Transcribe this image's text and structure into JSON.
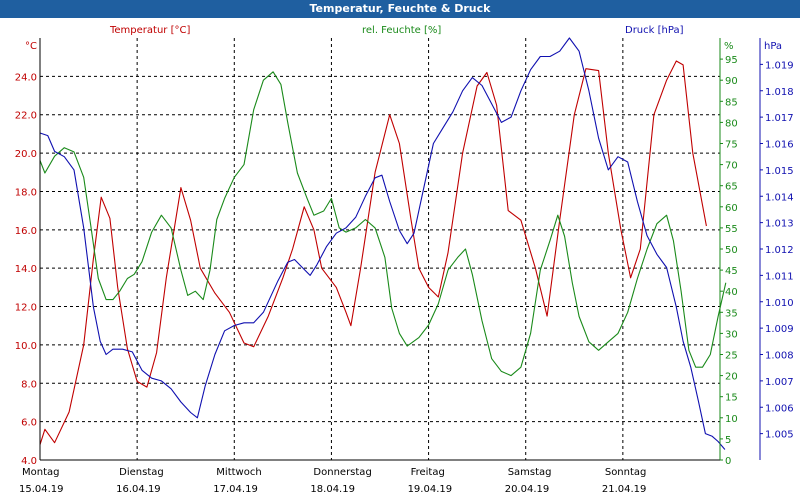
{
  "window": {
    "title": "Temperatur, Feuchte & Druck"
  },
  "chart_data": {
    "type": "line",
    "title": "Temperatur, Feuchte & Druck",
    "grid": true,
    "colors": {
      "temperature": "#c00000",
      "humidity": "#1a8a1a",
      "pressure": "#1010b0",
      "grid": "#000000",
      "titlebar": "#1f5fa0"
    },
    "x_axis": {
      "unit": "days",
      "range": [
        0,
        7.0
      ],
      "ticks": [
        {
          "x": 0,
          "day": "Montag",
          "date": "15.04.19"
        },
        {
          "x": 1,
          "day": "Dienstag",
          "date": "16.04.19"
        },
        {
          "x": 2,
          "day": "Mittwoch",
          "date": "17.04.19"
        },
        {
          "x": 3,
          "day": "Donnerstag",
          "date": "18.04.19"
        },
        {
          "x": 4,
          "day": "Freitag",
          "date": "19.04.19"
        },
        {
          "x": 5,
          "day": "Samstag",
          "date": "20.04.19"
        },
        {
          "x": 6,
          "day": "Sonntag",
          "date": "21.04.19"
        }
      ]
    },
    "axes": {
      "temperature": {
        "label": "Temperatur [°C]",
        "unit": "°C",
        "ylim": [
          4.0,
          26.0
        ],
        "ticks": [
          "4.0",
          "6.0",
          "8.0",
          "10.0",
          "12.0",
          "14.0",
          "16.0",
          "18.0",
          "20.0",
          "22.0",
          "24.0"
        ]
      },
      "humidity": {
        "label": "rel. Feuchte [%]",
        "unit": "%",
        "ylim": [
          0,
          100
        ],
        "ticks": [
          "0",
          "5",
          "10",
          "15",
          "20",
          "25",
          "30",
          "35",
          "40",
          "45",
          "50",
          "55",
          "60",
          "65",
          "70",
          "75",
          "80",
          "85",
          "90",
          "95"
        ]
      },
      "pressure": {
        "label": "Druck [hPa]",
        "unit": "hPa",
        "ylim": [
          1.004,
          1.02
        ],
        "ticks": [
          "1.005",
          "1.006",
          "1.007",
          "1.008",
          "1.009",
          "1.010",
          "1.011",
          "1.012",
          "1.013",
          "1.014",
          "1.015",
          "1.016",
          "1.017",
          "1.018",
          "1.019"
        ]
      }
    },
    "series": [
      {
        "name": "Temperatur [°C]",
        "axis": "temperature",
        "points": [
          [
            0,
            4.8
          ],
          [
            0.05,
            5.6
          ],
          [
            0.15,
            4.9
          ],
          [
            0.3,
            6.5
          ],
          [
            0.45,
            10.0
          ],
          [
            0.55,
            14.5
          ],
          [
            0.63,
            17.7
          ],
          [
            0.72,
            16.6
          ],
          [
            0.8,
            13.0
          ],
          [
            0.9,
            9.8
          ],
          [
            1.0,
            8.1
          ],
          [
            1.1,
            7.8
          ],
          [
            1.2,
            9.6
          ],
          [
            1.3,
            13.5
          ],
          [
            1.45,
            18.2
          ],
          [
            1.55,
            16.5
          ],
          [
            1.65,
            14.0
          ],
          [
            1.8,
            12.7
          ],
          [
            1.95,
            11.7
          ],
          [
            2.1,
            10.1
          ],
          [
            2.2,
            9.9
          ],
          [
            2.35,
            11.5
          ],
          [
            2.5,
            13.5
          ],
          [
            2.6,
            15.0
          ],
          [
            2.72,
            17.2
          ],
          [
            2.82,
            16.0
          ],
          [
            2.9,
            14.0
          ],
          [
            3.05,
            13.0
          ],
          [
            3.15,
            11.7
          ],
          [
            3.2,
            11.0
          ],
          [
            3.3,
            14.0
          ],
          [
            3.45,
            19.0
          ],
          [
            3.6,
            22.0
          ],
          [
            3.7,
            20.5
          ],
          [
            3.82,
            16.5
          ],
          [
            3.9,
            14.0
          ],
          [
            4.0,
            13.0
          ],
          [
            4.1,
            12.5
          ],
          [
            4.2,
            14.8
          ],
          [
            4.35,
            20.0
          ],
          [
            4.5,
            23.5
          ],
          [
            4.6,
            24.2
          ],
          [
            4.7,
            22.5
          ],
          [
            4.82,
            17.0
          ],
          [
            4.95,
            16.5
          ],
          [
            5.1,
            14.0
          ],
          [
            5.22,
            11.5
          ],
          [
            5.35,
            16.5
          ],
          [
            5.5,
            22.0
          ],
          [
            5.62,
            24.4
          ],
          [
            5.75,
            24.3
          ],
          [
            5.85,
            20.0
          ],
          [
            5.98,
            16.0
          ],
          [
            6.08,
            13.5
          ],
          [
            6.18,
            15.0
          ],
          [
            6.32,
            22.0
          ],
          [
            6.45,
            23.8
          ],
          [
            6.55,
            24.8
          ],
          [
            6.62,
            24.6
          ],
          [
            6.72,
            20.0
          ],
          [
            6.86,
            16.2
          ]
        ]
      },
      {
        "name": "rel. Feuchte [%]",
        "axis": "humidity",
        "points": [
          [
            0,
            71
          ],
          [
            0.05,
            68
          ],
          [
            0.15,
            72
          ],
          [
            0.25,
            74
          ],
          [
            0.35,
            73
          ],
          [
            0.45,
            67
          ],
          [
            0.52,
            56
          ],
          [
            0.6,
            43
          ],
          [
            0.68,
            38
          ],
          [
            0.75,
            38
          ],
          [
            0.82,
            40
          ],
          [
            0.9,
            43
          ],
          [
            0.97,
            44
          ],
          [
            1.05,
            47
          ],
          [
            1.15,
            54
          ],
          [
            1.25,
            58
          ],
          [
            1.35,
            55
          ],
          [
            1.45,
            45
          ],
          [
            1.52,
            39
          ],
          [
            1.6,
            40
          ],
          [
            1.68,
            38
          ],
          [
            1.75,
            45
          ],
          [
            1.82,
            57
          ],
          [
            1.9,
            62
          ],
          [
            2.0,
            67
          ],
          [
            2.1,
            70
          ],
          [
            2.2,
            83
          ],
          [
            2.3,
            90
          ],
          [
            2.4,
            92
          ],
          [
            2.48,
            89
          ],
          [
            2.55,
            80
          ],
          [
            2.65,
            68
          ],
          [
            2.75,
            62
          ],
          [
            2.82,
            58
          ],
          [
            2.92,
            59
          ],
          [
            3.0,
            62
          ],
          [
            3.08,
            55
          ],
          [
            3.15,
            54
          ],
          [
            3.25,
            55
          ],
          [
            3.35,
            57
          ],
          [
            3.45,
            55
          ],
          [
            3.55,
            48
          ],
          [
            3.62,
            36
          ],
          [
            3.7,
            30
          ],
          [
            3.78,
            27
          ],
          [
            3.9,
            29
          ],
          [
            4.0,
            32
          ],
          [
            4.1,
            37
          ],
          [
            4.2,
            45
          ],
          [
            4.3,
            48
          ],
          [
            4.38,
            50
          ],
          [
            4.45,
            44
          ],
          [
            4.55,
            33
          ],
          [
            4.65,
            24
          ],
          [
            4.75,
            21
          ],
          [
            4.85,
            20
          ],
          [
            4.95,
            22
          ],
          [
            5.05,
            30
          ],
          [
            5.15,
            45
          ],
          [
            5.25,
            52
          ],
          [
            5.33,
            58
          ],
          [
            5.4,
            53
          ],
          [
            5.48,
            42
          ],
          [
            5.55,
            34
          ],
          [
            5.65,
            28
          ],
          [
            5.75,
            26
          ],
          [
            5.85,
            28
          ],
          [
            5.95,
            30
          ],
          [
            6.05,
            35
          ],
          [
            6.15,
            43
          ],
          [
            6.25,
            50
          ],
          [
            6.35,
            56
          ],
          [
            6.45,
            58
          ],
          [
            6.52,
            52
          ],
          [
            6.6,
            40
          ],
          [
            6.68,
            26
          ],
          [
            6.75,
            22
          ],
          [
            6.82,
            22
          ],
          [
            6.9,
            25
          ],
          [
            6.98,
            34
          ],
          [
            7.06,
            42
          ]
        ]
      },
      {
        "name": "Druck [hPa]",
        "axis": "pressure",
        "points": [
          [
            0,
            1.0164
          ],
          [
            0.08,
            1.0163
          ],
          [
            0.15,
            1.0157
          ],
          [
            0.25,
            1.0155
          ],
          [
            0.35,
            1.015
          ],
          [
            0.45,
            1.0128
          ],
          [
            0.55,
            1.0098
          ],
          [
            0.62,
            1.0085
          ],
          [
            0.68,
            1.008
          ],
          [
            0.75,
            1.0082
          ],
          [
            0.85,
            1.0082
          ],
          [
            0.95,
            1.0081
          ],
          [
            1.05,
            1.0074
          ],
          [
            1.15,
            1.0071
          ],
          [
            1.25,
            1.007
          ],
          [
            1.35,
            1.0067
          ],
          [
            1.45,
            1.0062
          ],
          [
            1.55,
            1.0058
          ],
          [
            1.62,
            1.0056
          ],
          [
            1.7,
            1.0068
          ],
          [
            1.8,
            1.008
          ],
          [
            1.9,
            1.0089
          ],
          [
            2.0,
            1.0091
          ],
          [
            2.1,
            1.0092
          ],
          [
            2.2,
            1.0092
          ],
          [
            2.3,
            1.0096
          ],
          [
            2.45,
            1.0108
          ],
          [
            2.55,
            1.0115
          ],
          [
            2.62,
            1.0116
          ],
          [
            2.7,
            1.0113
          ],
          [
            2.78,
            1.011
          ],
          [
            2.85,
            1.0114
          ],
          [
            2.95,
            1.0121
          ],
          [
            3.05,
            1.0126
          ],
          [
            3.15,
            1.0128
          ],
          [
            3.25,
            1.0132
          ],
          [
            3.35,
            1.014
          ],
          [
            3.45,
            1.0147
          ],
          [
            3.52,
            1.0148
          ],
          [
            3.6,
            1.0138
          ],
          [
            3.7,
            1.0127
          ],
          [
            3.78,
            1.0122
          ],
          [
            3.85,
            1.0126
          ],
          [
            3.95,
            1.0143
          ],
          [
            4.05,
            1.016
          ],
          [
            4.15,
            1.0166
          ],
          [
            4.25,
            1.0172
          ],
          [
            4.35,
            1.018
          ],
          [
            4.45,
            1.0185
          ],
          [
            4.55,
            1.0182
          ],
          [
            4.65,
            1.0175
          ],
          [
            4.75,
            1.0168
          ],
          [
            4.85,
            1.017
          ],
          [
            4.95,
            1.018
          ],
          [
            5.05,
            1.0188
          ],
          [
            5.15,
            1.0193
          ],
          [
            5.25,
            1.0193
          ],
          [
            5.35,
            1.0195
          ],
          [
            5.45,
            1.02
          ],
          [
            5.55,
            1.0195
          ],
          [
            5.65,
            1.018
          ],
          [
            5.75,
            1.0162
          ],
          [
            5.85,
            1.015
          ],
          [
            5.95,
            1.0155
          ],
          [
            6.05,
            1.0153
          ],
          [
            6.15,
            1.0138
          ],
          [
            6.25,
            1.0125
          ],
          [
            6.35,
            1.0118
          ],
          [
            6.45,
            1.0113
          ],
          [
            6.55,
            1.0098
          ],
          [
            6.62,
            1.0085
          ],
          [
            6.7,
            1.0075
          ],
          [
            6.78,
            1.0062
          ],
          [
            6.85,
            1.005
          ],
          [
            6.92,
            1.0049
          ],
          [
            6.98,
            1.0047
          ],
          [
            7.05,
            1.0044
          ]
        ]
      }
    ]
  }
}
